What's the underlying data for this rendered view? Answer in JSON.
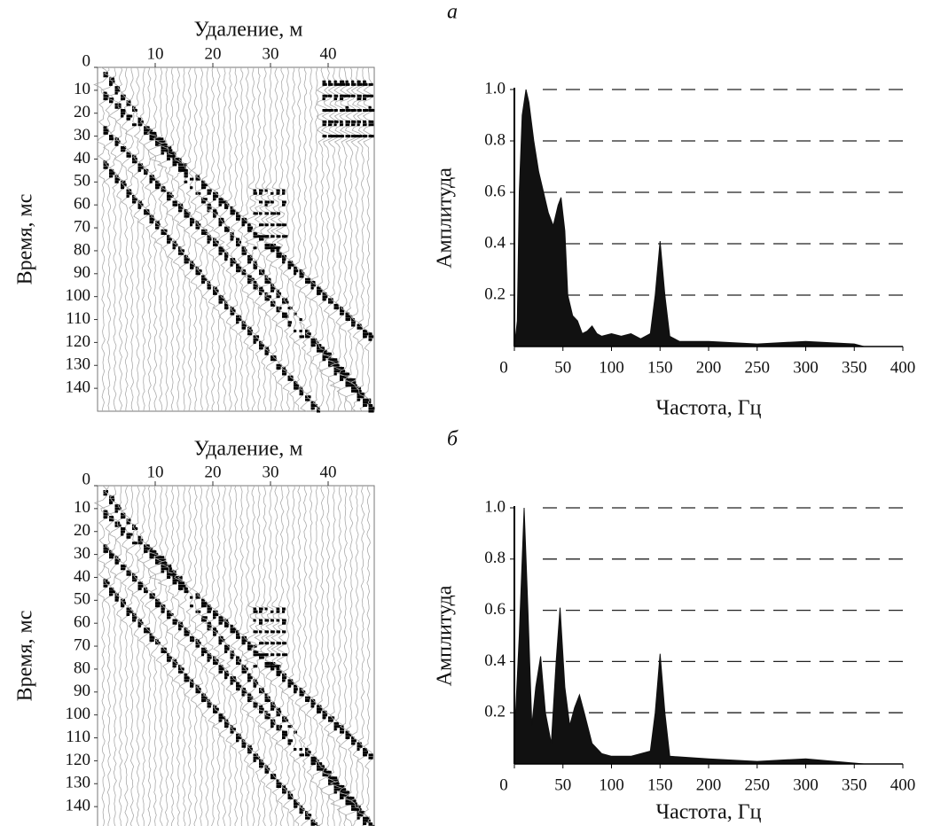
{
  "chart_data": [
    {
      "type": "seismogram",
      "xlabel": "Удаление, м",
      "ylabel": "Время, мс",
      "xlim": [
        0,
        48
      ],
      "xticks": [
        10,
        20,
        30,
        40
      ],
      "ylim": [
        0,
        150
      ],
      "yticks": [
        0,
        10,
        20,
        30,
        40,
        50,
        60,
        70,
        80,
        90,
        100,
        110,
        120,
        130,
        140
      ]
    },
    {
      "type": "area",
      "panel": "а",
      "xlabel": "Частота, Гц",
      "ylabel": "Амплитуда",
      "color": "#111111",
      "grid": true,
      "xlim": [
        0,
        400
      ],
      "xticks": [
        0,
        50,
        100,
        150,
        200,
        250,
        300,
        350,
        400
      ],
      "ylim": [
        0,
        1
      ],
      "yticks": [
        0.2,
        0.4,
        0.6,
        0.8,
        {
          "value": 1,
          "label": "1.0"
        }
      ],
      "x": [
        0,
        3,
        5,
        8,
        12,
        15,
        20,
        25,
        30,
        35,
        40,
        45,
        48,
        52,
        55,
        60,
        65,
        70,
        75,
        80,
        85,
        90,
        100,
        110,
        120,
        130,
        140,
        145,
        150,
        155,
        160,
        170,
        200,
        250,
        300,
        350,
        360
      ],
      "values": [
        0,
        0.1,
        0.6,
        0.9,
        1.0,
        0.95,
        0.8,
        0.68,
        0.6,
        0.52,
        0.47,
        0.55,
        0.58,
        0.45,
        0.2,
        0.12,
        0.1,
        0.05,
        0.06,
        0.08,
        0.05,
        0.04,
        0.05,
        0.04,
        0.05,
        0.03,
        0.05,
        0.2,
        0.41,
        0.2,
        0.04,
        0.02,
        0.02,
        0.01,
        0.02,
        0.01,
        0
      ]
    },
    {
      "type": "seismogram",
      "xlabel": "Удаление, м",
      "ylabel": "Время, мс",
      "xlim": [
        0,
        48
      ],
      "xticks": [
        10,
        20,
        30,
        40
      ],
      "ylim": [
        0,
        150
      ],
      "yticks": [
        0,
        10,
        20,
        30,
        40,
        50,
        60,
        70,
        80,
        90,
        100,
        110,
        120,
        130,
        140
      ]
    },
    {
      "type": "area",
      "panel": "б",
      "xlabel": "Частота, Гц",
      "ylabel": "Амплитуда",
      "color": "#111111",
      "grid": true,
      "xlim": [
        0,
        400
      ],
      "xticks": [
        0,
        50,
        100,
        150,
        200,
        250,
        300,
        350,
        400
      ],
      "ylim": [
        0,
        1
      ],
      "yticks": [
        0.2,
        0.4,
        0.6,
        0.8,
        {
          "value": 1,
          "label": "1.0"
        }
      ],
      "x": [
        0,
        5,
        10,
        14,
        18,
        22,
        27,
        32,
        38,
        43,
        47,
        52,
        57,
        62,
        67,
        72,
        80,
        90,
        100,
        120,
        140,
        145,
        150,
        155,
        160,
        200,
        250,
        300,
        360
      ],
      "values": [
        0.1,
        0.5,
        1.0,
        0.6,
        0.15,
        0.3,
        0.42,
        0.2,
        0.08,
        0.4,
        0.61,
        0.3,
        0.15,
        0.22,
        0.27,
        0.2,
        0.08,
        0.04,
        0.03,
        0.03,
        0.05,
        0.2,
        0.43,
        0.2,
        0.03,
        0.02,
        0.01,
        0.02,
        0
      ]
    }
  ]
}
